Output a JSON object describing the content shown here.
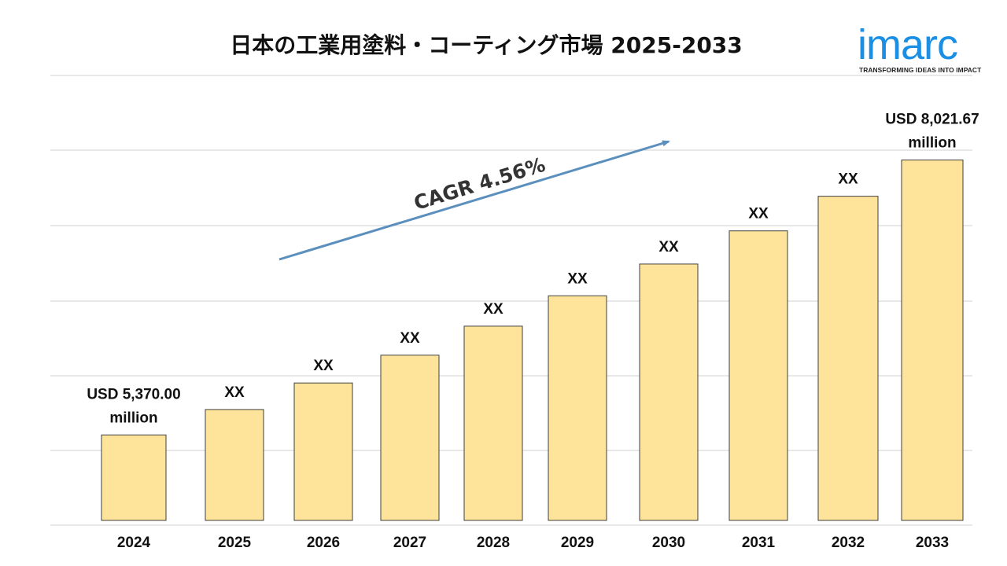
{
  "chart_data": {
    "type": "bar",
    "title": "日本の工業用塗料・コーティング市場 2025-2033",
    "categories": [
      "2024",
      "2025",
      "2026",
      "2027",
      "2028",
      "2029",
      "2030",
      "2031",
      "2032",
      "2033"
    ],
    "values": [
      5370.0,
      5615,
      5871,
      6139,
      6419,
      6712,
      7018,
      7338,
      7672,
      8021.67
    ],
    "data_labels": [
      [
        "USD 5,370.00",
        "million"
      ],
      [
        "XX"
      ],
      [
        "XX"
      ],
      [
        "XX"
      ],
      [
        "XX"
      ],
      [
        "XX"
      ],
      [
        "XX"
      ],
      [
        "XX"
      ],
      [
        "XX"
      ],
      [
        "USD 8,021.67",
        "million"
      ]
    ],
    "xlabel": "",
    "ylabel": "",
    "grid": true,
    "annotation": "CAGR 4.56%",
    "colors": {
      "bar_fill": "#fde49a",
      "bar_stroke": "#3f3f3f",
      "grid": "#d0d0d0",
      "arrow": "#5b8fbd"
    }
  },
  "logo": {
    "word": "imarc",
    "tagline": "TRANSFORMING IDEAS INTO IMPACT",
    "color": "#1a8fe3"
  }
}
